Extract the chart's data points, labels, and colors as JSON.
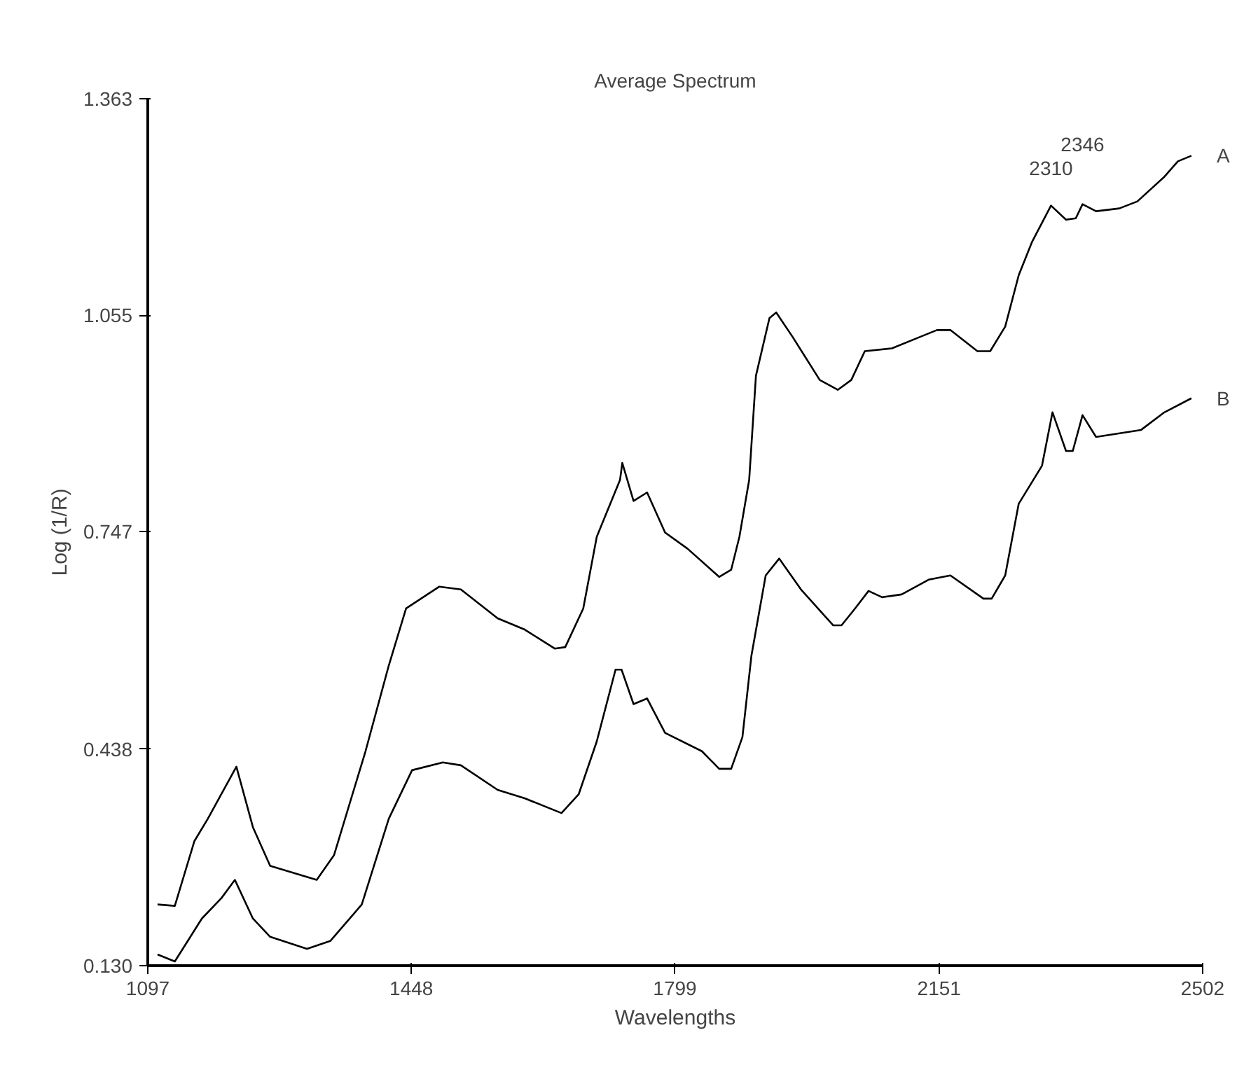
{
  "chart_data": {
    "type": "line",
    "title": "Average Spectrum",
    "xlabel": "Wavelengths",
    "ylabel": "Log (1/R)",
    "xlim": [
      1097,
      2502
    ],
    "ylim": [
      0.13,
      1.363
    ],
    "xticks": [
      1097,
      1448,
      1799,
      2151,
      2502
    ],
    "yticks": [
      {
        "value": 0.13,
        "label": "0.130"
      },
      0.438,
      0.747,
      1.055,
      1.363
    ],
    "grid": false,
    "legend": false,
    "marker": "none",
    "line_style": "solid",
    "annotations": [
      {
        "text": "2310",
        "x": 2300,
        "y": 1.211
      },
      {
        "text": "2346",
        "x": 2342,
        "y": 1.213
      }
    ],
    "series": [
      {
        "name": "A",
        "color": "#000000",
        "x": [
          1110,
          1133,
          1159,
          1177,
          1215,
          1237,
          1260,
          1322,
          1345,
          1387,
          1418,
          1441,
          1485,
          1514,
          1563,
          1599,
          1639,
          1653,
          1677,
          1695,
          1726,
          1729,
          1744,
          1762,
          1786,
          1816,
          1858,
          1874,
          1885,
          1898,
          1907,
          1925,
          1934,
          1956,
          1992,
          2016,
          2034,
          2052,
          2088,
          2125,
          2148,
          2166,
          2202,
          2219,
          2239,
          2257,
          2275,
          2300,
          2320,
          2333,
          2342,
          2360,
          2391,
          2415,
          2451,
          2469,
          2487
        ],
        "values": [
          0.217,
          0.215,
          0.307,
          0.339,
          0.413,
          0.327,
          0.272,
          0.252,
          0.287,
          0.435,
          0.557,
          0.638,
          0.669,
          0.665,
          0.624,
          0.608,
          0.581,
          0.583,
          0.638,
          0.74,
          0.821,
          0.845,
          0.791,
          0.803,
          0.746,
          0.723,
          0.683,
          0.693,
          0.74,
          0.821,
          0.969,
          1.051,
          1.059,
          1.024,
          0.963,
          0.949,
          0.963,
          1.004,
          1.008,
          1.024,
          1.034,
          1.034,
          1.004,
          1.004,
          1.039,
          1.112,
          1.16,
          1.211,
          1.191,
          1.193,
          1.213,
          1.203,
          1.207,
          1.217,
          1.252,
          1.274,
          1.282
        ]
      },
      {
        "name": "B",
        "color": "#000000",
        "x": [
          1110,
          1133,
          1169,
          1195,
          1213,
          1237,
          1260,
          1309,
          1340,
          1382,
          1418,
          1449,
          1490,
          1514,
          1563,
          1599,
          1648,
          1671,
          1695,
          1720,
          1728,
          1744,
          1762,
          1786,
          1835,
          1858,
          1874,
          1889,
          1901,
          1920,
          1938,
          1967,
          2010,
          2021,
          2039,
          2057,
          2075,
          2101,
          2137,
          2166,
          2210,
          2221,
          2239,
          2257,
          2288,
          2302,
          2320,
          2329,
          2342,
          2360,
          2420,
          2451,
          2487
        ],
        "values": [
          0.146,
          0.136,
          0.197,
          0.226,
          0.252,
          0.197,
          0.171,
          0.154,
          0.165,
          0.217,
          0.339,
          0.408,
          0.419,
          0.415,
          0.38,
          0.368,
          0.347,
          0.374,
          0.449,
          0.551,
          0.551,
          0.502,
          0.51,
          0.461,
          0.435,
          0.41,
          0.41,
          0.455,
          0.571,
          0.685,
          0.709,
          0.665,
          0.614,
          0.614,
          0.638,
          0.663,
          0.654,
          0.658,
          0.679,
          0.685,
          0.652,
          0.652,
          0.685,
          0.787,
          0.841,
          0.917,
          0.862,
          0.862,
          0.913,
          0.882,
          0.892,
          0.917,
          0.937
        ]
      }
    ]
  }
}
